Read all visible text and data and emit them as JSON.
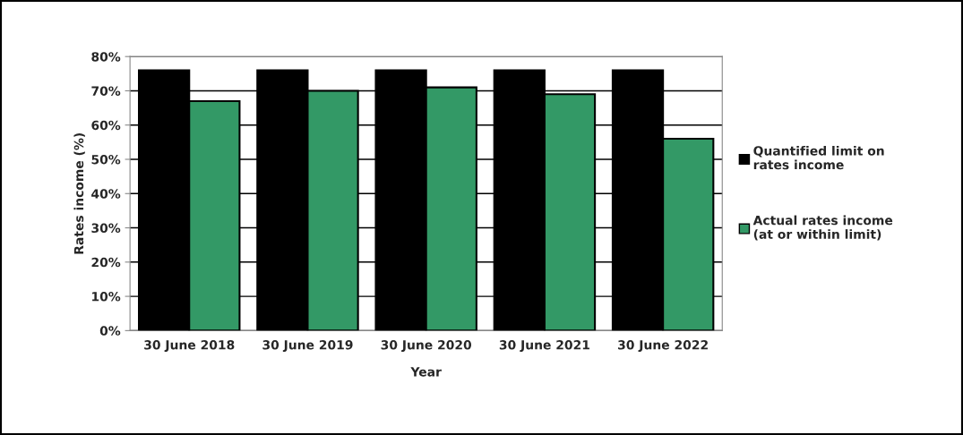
{
  "chart_data": {
    "type": "bar",
    "xlabel": "Year",
    "ylabel": "Rates income (%)",
    "categories": [
      "30 June 2018",
      "30 June 2019",
      "30 June 2020",
      "30 June 2021",
      "30 June 2022"
    ],
    "series": [
      {
        "name": "Quantified limit on\nrates income",
        "color": "#000000",
        "values": [
          76,
          76,
          76,
          76,
          76
        ]
      },
      {
        "name": "Actual rates income\n(at or within limit)",
        "color": "#339966",
        "values": [
          67,
          70,
          71,
          69,
          56
        ]
      }
    ],
    "ylim": [
      0,
      80
    ],
    "yticks": [
      {
        "value": 0,
        "label": "0%"
      },
      {
        "value": 10,
        "label": "10%"
      },
      {
        "value": 20,
        "label": "20%"
      },
      {
        "value": 30,
        "label": "30%"
      },
      {
        "value": 40,
        "label": "40%"
      },
      {
        "value": 50,
        "label": "50%"
      },
      {
        "value": 60,
        "label": "60%"
      },
      {
        "value": 70,
        "label": "70%"
      },
      {
        "value": 80,
        "label": "80%"
      }
    ],
    "grid": "y",
    "legend": "right"
  }
}
